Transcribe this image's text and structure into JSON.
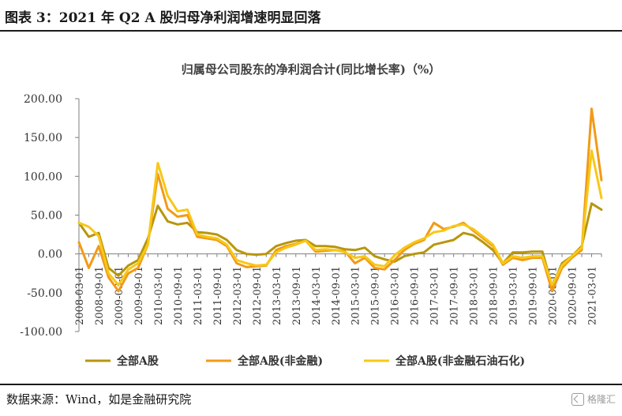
{
  "figure": {
    "title": "图表 3：2021 年 Q2 A 股归母净利润增速明显回落",
    "source": "数据来源：Wind，如是金融研究院",
    "watermark": "格隆汇"
  },
  "chart_data": {
    "type": "line",
    "title": "归属母公司股东的净利润合计(同比增长率)（%）",
    "xlabel": "",
    "ylabel": "",
    "ylim": [
      -100,
      200
    ],
    "yticks": [
      "200.00",
      "150.00",
      "100.00",
      "50.00",
      "0.00",
      "-50.00",
      "-100.00"
    ],
    "ytick_values": [
      200,
      150,
      100,
      50,
      0,
      -50,
      -100
    ],
    "grid": false,
    "legend_position": "bottom",
    "xtick_labels": [
      "2008-03-01",
      "2008-09-01",
      "2009-03-01",
      "2009-09-01",
      "2010-03-01",
      "2010-09-01",
      "2011-03-01",
      "2011-09-01",
      "2012-03-01",
      "2012-09-01",
      "2013-03-01",
      "2013-09-01",
      "2014-03-01",
      "2014-09-01",
      "2015-03-01",
      "2015-09-01",
      "2016-03-01",
      "2016-09-01",
      "2017-03-01",
      "2017-09-01",
      "2018-03-01",
      "2018-09-01",
      "2019-03-01",
      "2019-09-01",
      "2020-03-01",
      "2020-09-01",
      "2021-03-01"
    ],
    "x": [
      "2008-03",
      "2008-06",
      "2008-09",
      "2008-12",
      "2009-03",
      "2009-06",
      "2009-09",
      "2009-12",
      "2010-03",
      "2010-06",
      "2010-09",
      "2010-12",
      "2011-03",
      "2011-06",
      "2011-09",
      "2011-12",
      "2012-03",
      "2012-06",
      "2012-09",
      "2012-12",
      "2013-03",
      "2013-06",
      "2013-09",
      "2013-12",
      "2014-03",
      "2014-06",
      "2014-09",
      "2014-12",
      "2015-03",
      "2015-06",
      "2015-09",
      "2015-12",
      "2016-03",
      "2016-06",
      "2016-09",
      "2016-12",
      "2017-03",
      "2017-06",
      "2017-09",
      "2017-12",
      "2018-03",
      "2018-06",
      "2018-09",
      "2018-12",
      "2019-03",
      "2019-06",
      "2019-09",
      "2019-12",
      "2020-03",
      "2020-06",
      "2020-09",
      "2020-12",
      "2021-03",
      "2021-06"
    ],
    "series": [
      {
        "name": "全部A股",
        "color": "#b8960c",
        "values": [
          40,
          22,
          27,
          -18,
          -28,
          -15,
          -8,
          20,
          62,
          42,
          38,
          40,
          28,
          27,
          25,
          18,
          5,
          0,
          -1,
          0,
          10,
          14,
          17,
          18,
          10,
          10,
          9,
          6,
          5,
          8,
          -3,
          -7,
          -10,
          -3,
          0,
          2,
          12,
          15,
          18,
          27,
          24,
          15,
          5,
          -12,
          2,
          2,
          3,
          3,
          -42,
          -12,
          -3,
          10,
          65,
          57
        ]
      },
      {
        "name": "全部A股(非金融)",
        "color": "#f29a18",
        "values": [
          15,
          -18,
          10,
          -30,
          -48,
          -25,
          -18,
          12,
          103,
          58,
          48,
          50,
          22,
          20,
          18,
          10,
          -12,
          -17,
          -16,
          -15,
          5,
          10,
          13,
          17,
          3,
          4,
          5,
          3,
          -12,
          -5,
          -18,
          -20,
          -8,
          5,
          13,
          18,
          40,
          32,
          35,
          40,
          30,
          20,
          10,
          -14,
          -5,
          -8,
          -5,
          -5,
          -48,
          -18,
          -5,
          5,
          187,
          95
        ]
      },
      {
        "name": "全部A股(非金融石油石化)",
        "color": "#f7c817",
        "values": [
          40,
          35,
          23,
          -25,
          -40,
          -20,
          -12,
          12,
          117,
          75,
          55,
          57,
          25,
          22,
          20,
          12,
          -8,
          -12,
          -15,
          -14,
          2,
          8,
          12,
          17,
          5,
          6,
          5,
          2,
          -5,
          -3,
          -14,
          -16,
          -2,
          8,
          15,
          20,
          28,
          30,
          36,
          38,
          32,
          22,
          12,
          -12,
          -3,
          -5,
          -3,
          -3,
          -40,
          -15,
          -3,
          8,
          133,
          72
        ]
      }
    ]
  }
}
